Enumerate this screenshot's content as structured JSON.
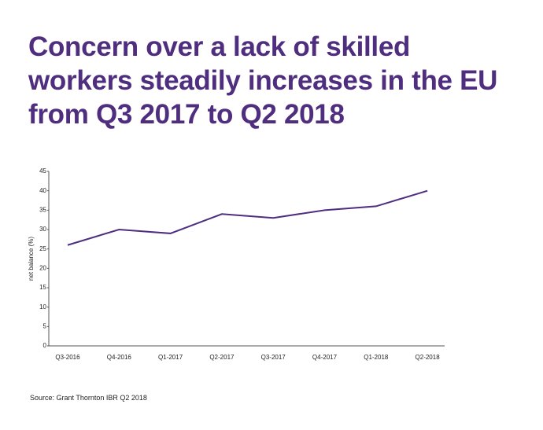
{
  "chart_data": {
    "type": "line",
    "title": "Concern over a lack of skilled workers steadily increases in the EU from Q3 2017 to Q2 2018",
    "y_label": "net balance (%)",
    "source": "Source: Grant Thornton IBR Q2 2018",
    "categories": [
      "Q3-2016",
      "Q4-2016",
      "Q1-2017",
      "Q2-2017",
      "Q3-2017",
      "Q4-2017",
      "Q1-2018",
      "Q2-2018"
    ],
    "series": [
      {
        "name": "net balance",
        "color": "#4f2d7f",
        "values": [
          26,
          30,
          29,
          34,
          33,
          35,
          36,
          40
        ]
      }
    ],
    "ylim": [
      0,
      45
    ],
    "yticks": [
      0,
      5,
      10,
      15,
      20,
      25,
      30,
      35,
      40,
      45
    ]
  }
}
